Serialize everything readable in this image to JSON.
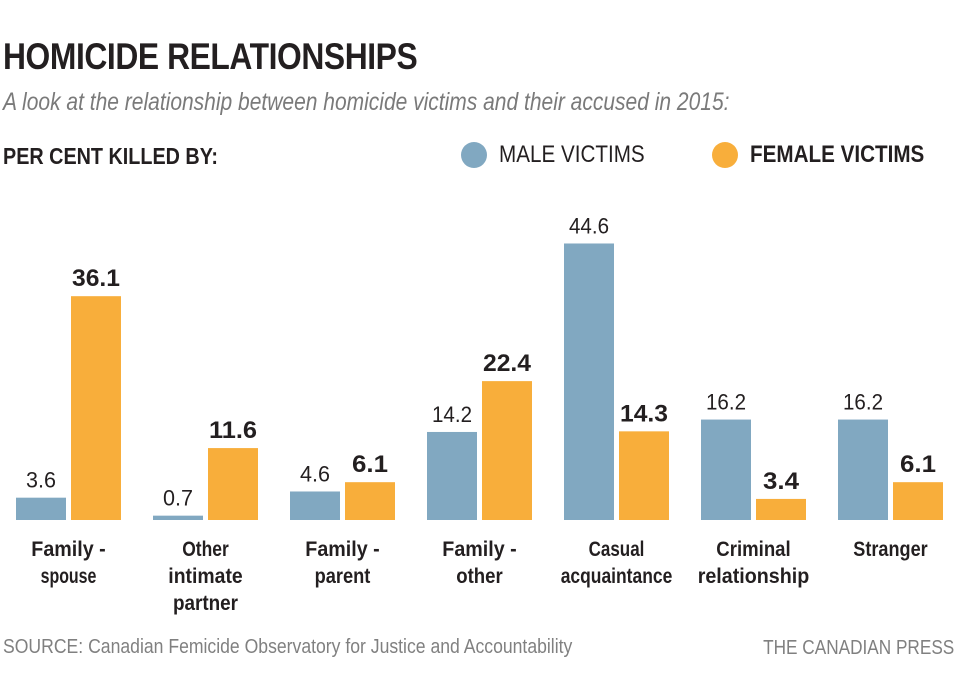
{
  "header": {
    "title": "HOMICIDE RELATIONSHIPS",
    "subtitle": "A look at the relationship between homicide victims and their accused in 2015:",
    "measure_label": "PER CENT KILLED BY:"
  },
  "legend": {
    "male_label": "MALE VICTIMS",
    "female_label": "FEMALE VICTIMS"
  },
  "colors": {
    "male": "#81a8c1",
    "female": "#f8ae3b",
    "text": "#231f20"
  },
  "footer": {
    "source": "SOURCE: Canadian Femicide Observatory for Justice and Accountability",
    "credit": "THE CANADIAN PRESS"
  },
  "chart_data": {
    "type": "bar",
    "title": "HOMICIDE RELATIONSHIPS",
    "ylabel": "PER CENT KILLED BY:",
    "xlabel": "",
    "ylim": [
      0,
      50
    ],
    "grid": false,
    "legend_position": "top-right",
    "categories": [
      [
        "Family -",
        "spouse"
      ],
      [
        "Other",
        "intimate",
        "partner"
      ],
      [
        "Family -",
        "parent"
      ],
      [
        "Family -",
        "other"
      ],
      [
        "Casual",
        "acquaintance"
      ],
      [
        "Criminal",
        "relationship"
      ],
      [
        "Stranger"
      ]
    ],
    "series": [
      {
        "name": "MALE VICTIMS",
        "values": [
          3.6,
          0.7,
          4.6,
          14.2,
          44.6,
          16.2,
          16.2
        ],
        "labels": [
          "3.6",
          "0.7",
          "4.6",
          "14.2",
          "44.6",
          "16.2",
          "16.2"
        ]
      },
      {
        "name": "FEMALE VICTIMS",
        "values": [
          36.1,
          11.6,
          6.1,
          22.4,
          14.3,
          3.4,
          6.1
        ],
        "labels": [
          "36.1",
          "11.6",
          "6.1",
          "22.4",
          "14.3",
          "3.4",
          "6.1"
        ]
      }
    ]
  }
}
